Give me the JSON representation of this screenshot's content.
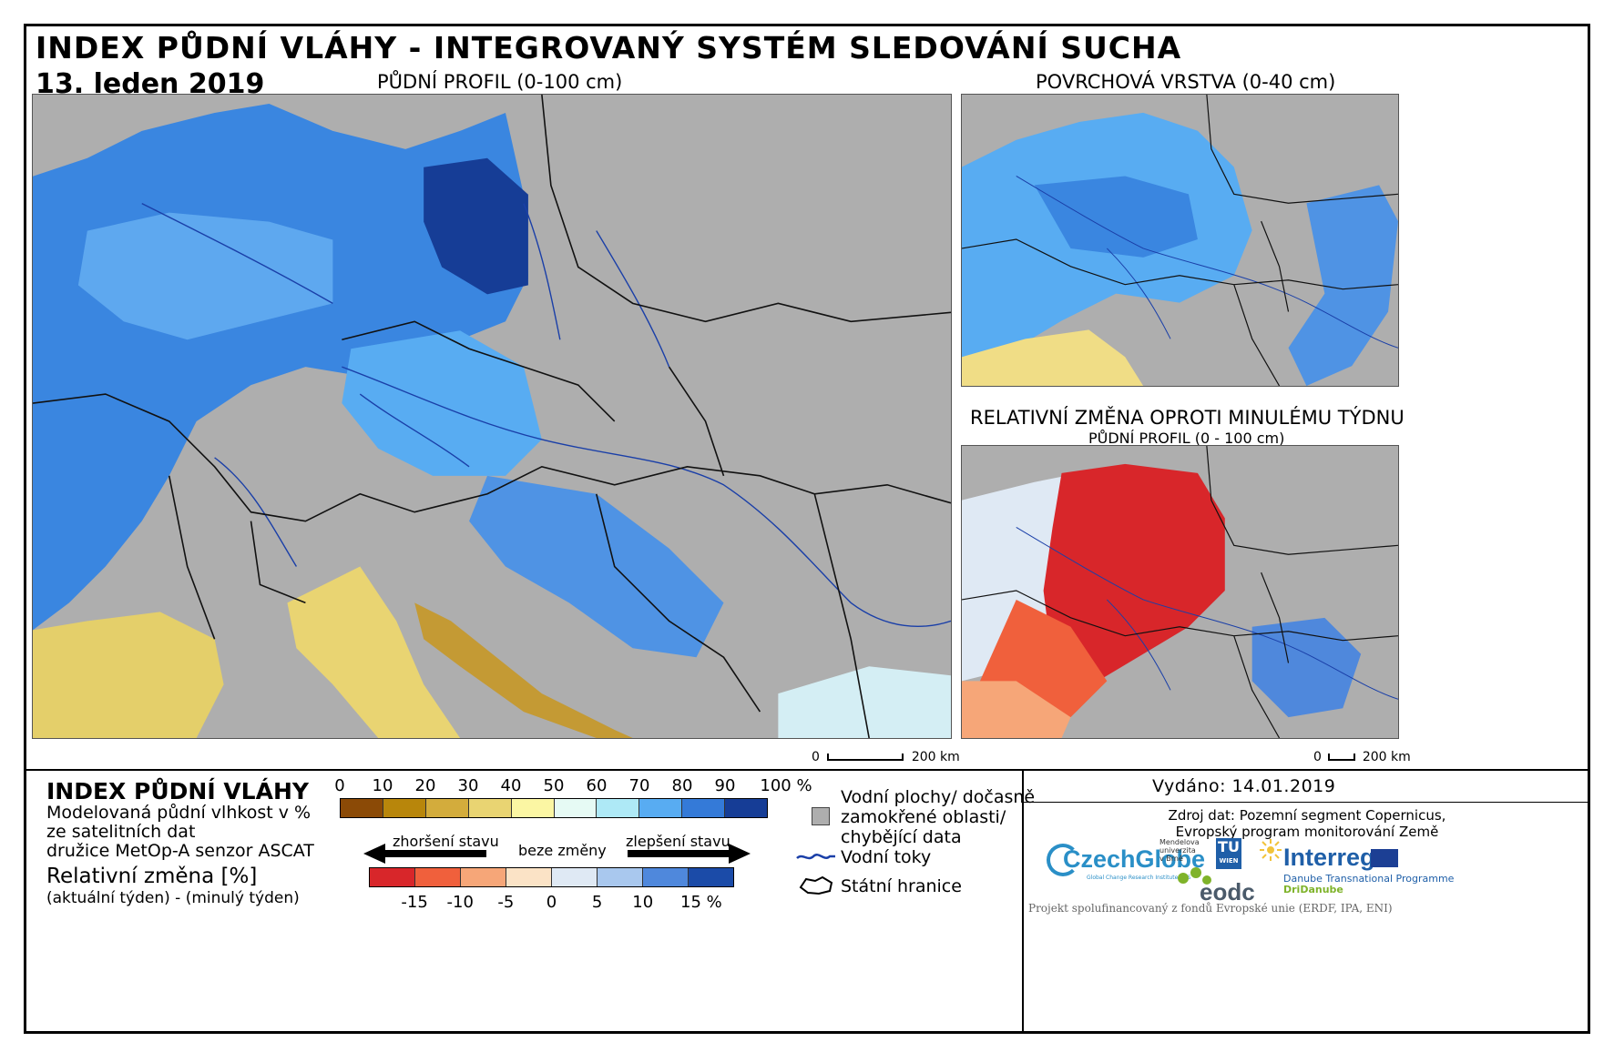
{
  "header": {
    "title": "INDEX PŮDNÍ VLÁHY - INTEGROVANÝ SYSTÉM SLEDOVÁNÍ SUCHA",
    "date": "13. leden 2019"
  },
  "maps": {
    "main_title": "PŮDNÍ PROFIL (0-100 cm)",
    "surface_title": "POVRCHOVÁ VRSTVA (0-40 cm)",
    "change_title": "RELATIVNÍ ZMĚNA OPROTI MINULÉMU TÝDNU",
    "change_subtitle": "PŮDNÍ PROFIL (0 - 100 cm)",
    "scale_main": {
      "zero": "0",
      "end": "200 km"
    },
    "scale_small": {
      "zero": "0",
      "end": "200 km"
    }
  },
  "legend": {
    "title": "INDEX PŮDNÍ VLÁHY",
    "desc_line1": "Modelovaná půdní vlhkost v %",
    "desc_line2": "ze satelitních dat",
    "desc_line3": "družice MetOp-A senzor ASCAT",
    "change_label": "Relativní změna [%]",
    "change_desc": "(aktuální týden) - (minulý týden)",
    "index_ticks": [
      "0",
      "10",
      "20",
      "30",
      "40",
      "50",
      "60",
      "70",
      "80",
      "90",
      "100 %"
    ],
    "index_colors": [
      "#8b4a06",
      "#b8860b",
      "#d3ac3c",
      "#e9d472",
      "#fbf6a3",
      "#e6faf4",
      "#aee9f6",
      "#58acf2",
      "#347ad8",
      "#163d96"
    ],
    "change_colors": [
      "#d8262a",
      "#f0603c",
      "#f6a678",
      "#fbe3c6",
      "#dfe9f4",
      "#a9c8ee",
      "#4f88dc",
      "#1b4ba8"
    ],
    "change_ticks": [
      "-15",
      "-10",
      "-5",
      "0",
      "5",
      "10",
      "15 %"
    ],
    "worse": "zhoršení stavu",
    "none": "beze změny",
    "better": "zlepšení stavu",
    "water_bodies_line1": "Vodní plochy/ dočasně",
    "water_bodies_line2": "zamokřené oblasti/",
    "water_bodies_line3": "chybějící data",
    "rivers": "Vodní toky",
    "borders": "Státní hranice",
    "nodata_color": "#aeaeae",
    "river_color": "#1a3fa8"
  },
  "info": {
    "issued": "Vydáno: 14.01.2019",
    "source_line1": "Zdroj dat: Pozemní segment Copernicus,",
    "source_line2": "Evropský program monitorování Země",
    "footer": "Projekt spolufinancovaný z fondů Evropské unie (ERDF, IPA, ENI)"
  },
  "logos": {
    "czechglobe": "CzechGlobe",
    "czechglobe_sub": "Global Change Research Institute CAS",
    "mendel_line1": "Mendelova",
    "mendel_line2": "univerzita",
    "mendel_line3": "v Brně",
    "tu_line1": "TU",
    "tu_line2": "WIEN",
    "eodc": "eodc",
    "interreg": "Interreg",
    "danube": "Danube Transnational Programme",
    "dridanube": "DriDanube"
  }
}
